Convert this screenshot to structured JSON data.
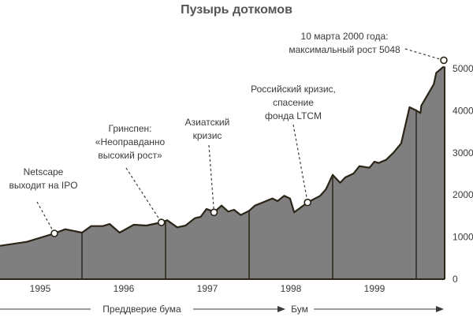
{
  "chart_data": {
    "type": "area",
    "title": "Пузырь доткомов",
    "xlabel": "",
    "ylabel": "",
    "xlim": [
      1995,
      2000.34
    ],
    "ylim": [
      0,
      5500
    ],
    "y_ticks": [
      0,
      1000,
      2000,
      3000,
      4000,
      5000
    ],
    "x_tick_labels": [
      "1995",
      "1996",
      "1997",
      "1998",
      "1999"
    ],
    "y_axis_position": "right",
    "grid": false,
    "fill_color": "#7f7f7f",
    "line_color": "#2b2518",
    "x": [
      1995.02,
      1995.34,
      1995.67,
      1995.8,
      1996.0,
      1996.11,
      1996.25,
      1996.33,
      1996.45,
      1996.62,
      1996.77,
      1996.95,
      1997.02,
      1997.14,
      1997.24,
      1997.35,
      1997.42,
      1997.49,
      1997.55,
      1997.58,
      1997.67,
      1997.75,
      1997.82,
      1997.9,
      1998.0,
      1998.07,
      1998.28,
      1998.34,
      1998.42,
      1998.49,
      1998.54,
      1998.7,
      1998.85,
      1998.92,
      1999.0,
      1999.09,
      1999.15,
      1999.25,
      1999.32,
      1999.44,
      1999.5,
      1999.55,
      1999.64,
      1999.73,
      1999.82,
      1999.92,
      2000.0,
      2000.05,
      2000.06,
      2000.21,
      2000.24,
      2000.33
    ],
    "values": [
      792,
      886,
      1086,
      1185,
      1105,
      1260,
      1260,
      1311,
      1105,
      1292,
      1273,
      1348,
      1399,
      1230,
      1273,
      1448,
      1479,
      1667,
      1623,
      1586,
      1747,
      1605,
      1648,
      1523,
      1623,
      1747,
      1916,
      1854,
      1979,
      1916,
      1586,
      1822,
      1979,
      2135,
      2477,
      2290,
      2416,
      2509,
      2684,
      2646,
      2790,
      2759,
      2833,
      3009,
      3227,
      4083,
      4008,
      3945,
      4120,
      4631,
      4900,
      5048
    ],
    "periods": [
      {
        "label": "Преддверие бума"
      },
      {
        "label": "Бум"
      }
    ],
    "annotations": [
      {
        "lines": [
          "Netscape",
          "выходит на IPO"
        ],
        "x": 1995.67,
        "y": 1086
      },
      {
        "lines": [
          "Гринспен:",
          "«Неоправданно",
          "высокий рост»"
        ],
        "x": 1996.95,
        "y": 1348
      },
      {
        "lines": [
          "Азиатский",
          "кризис"
        ],
        "x": 1997.58,
        "y": 1586
      },
      {
        "lines": [
          "Российский кризис,",
          "спасение",
          "фонда LTCM"
        ],
        "x": 1998.7,
        "y": 1822
      },
      {
        "lines": [
          "10 марта 2000 года:",
          "максимальный рост 5048"
        ],
        "x": 2000.33,
        "y": 5048
      }
    ]
  }
}
